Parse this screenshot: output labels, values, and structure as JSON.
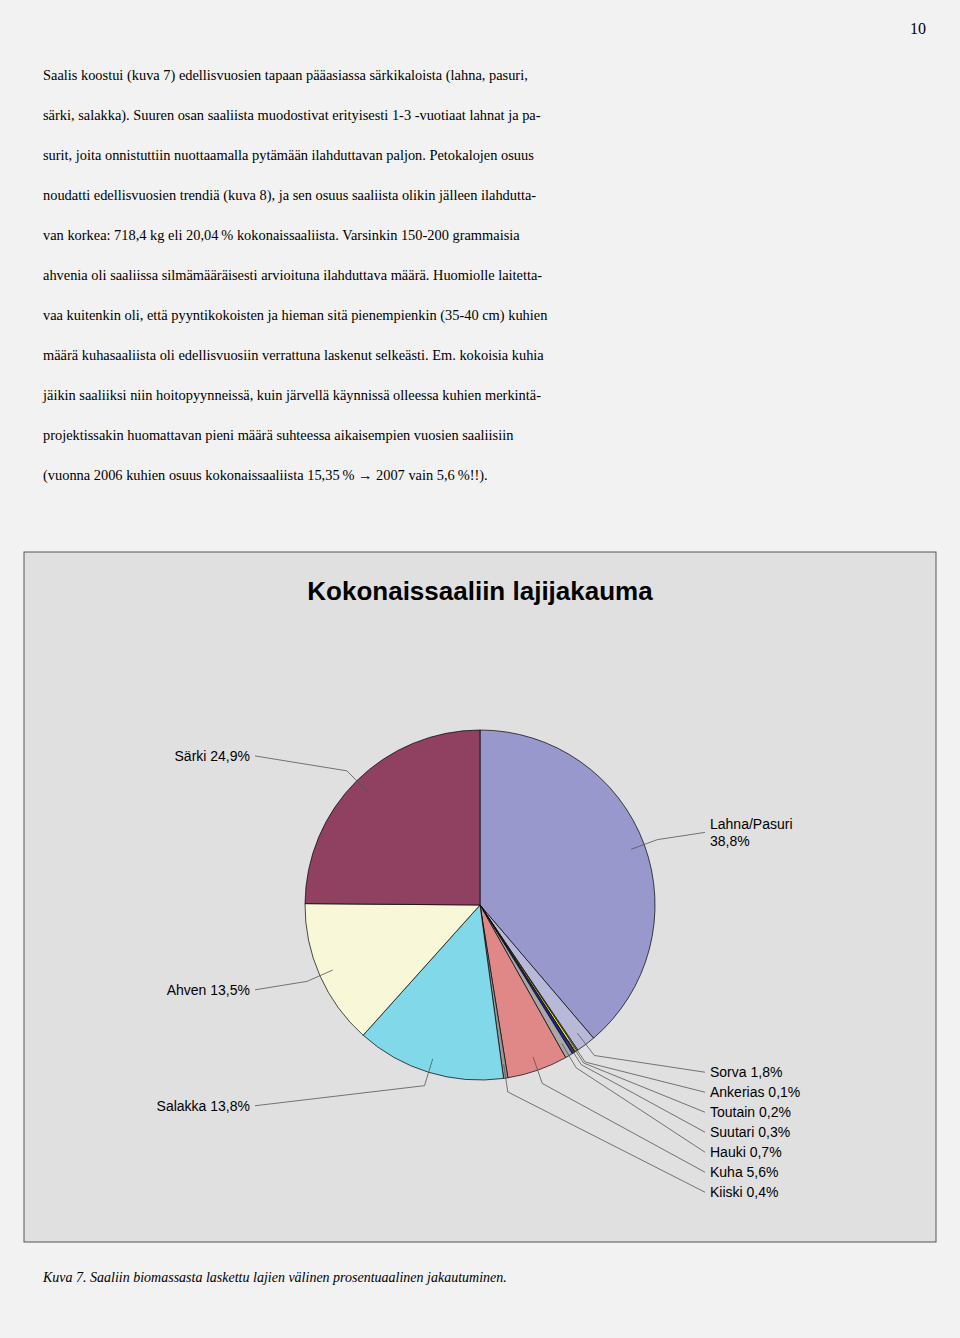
{
  "page_number": "10",
  "body_text": [
    "Saalis koostui (kuva 7) edellisvuosien tapaan pääasiassa särkikaloista (lahna, pasuri,",
    "särki, salakka). Suuren osan saaliista muodostivat erityisesti 1-3 -vuotiaat lahnat ja pa-",
    "surit, joita onnistuttiin nuottaamalla pytämään ilahduttavan paljon. Petokalojen osuus",
    "noudatti edellisvuosien trendiä (kuva 8), ja sen osuus saaliista olikin jälleen ilahdutta-",
    "van korkea: 718,4 kg eli 20,04 % kokonaissaaliista. Varsinkin 150-200 grammaisia",
    "ahvenia oli saaliissa silmämääräisesti arvioituna ilahduttava määrä. Huomiolle laitetta-",
    "vaa kuitenkin oli, että pyyntikokoisten ja hieman sitä pienempienkin (35-40 cm) kuhien",
    "määrä kuhasaaliista oli edellisvuosiin verrattuna laskenut selkeästi. Em. kokoisia kuhia",
    "jäikin saaliiksi niin hoitopyynneissä, kuin järvellä käynnissä olleessa kuhien merkintä-",
    "projektissakin huomattavan pieni määrä suhteessa aikaisempien vuosien saaliisiin",
    "(vuonna 2006 kuhien osuus kokonaissaaliista 15,35 % → 2007 vain 5,6 %!!)."
  ],
  "caption": "Kuva 7. Saaliin biomassasta laskettu lajien välinen prosentuaalinen jakautuminen.",
  "chart_data": {
    "type": "pie",
    "title": "Kokonaissaaliin lajijakauma",
    "categories": [
      "Lahna/Pasuri\n38,8%",
      "Sorva 1,8%",
      "Ankerias 0,1%",
      "Toutain 0,2%",
      "Suutari 0,3%",
      "Hauki 0,7%",
      "Kuha 5,6%",
      "Kiiski 0,4%",
      "Salakka 13,8%",
      "Ahven 13,5%",
      "Särki 24,9%"
    ],
    "values": [
      38.8,
      1.8,
      0.1,
      0.2,
      0.3,
      0.7,
      5.6,
      0.4,
      13.8,
      13.5,
      24.9
    ],
    "colors": [
      "#9898cc",
      "#b8b8d8",
      "#d0d0e8",
      "#ffff00",
      "#2020a0",
      "#a8a8a8",
      "#e08888",
      "#989898",
      "#80d8e8",
      "#f8f8d8",
      "#904060"
    ]
  }
}
